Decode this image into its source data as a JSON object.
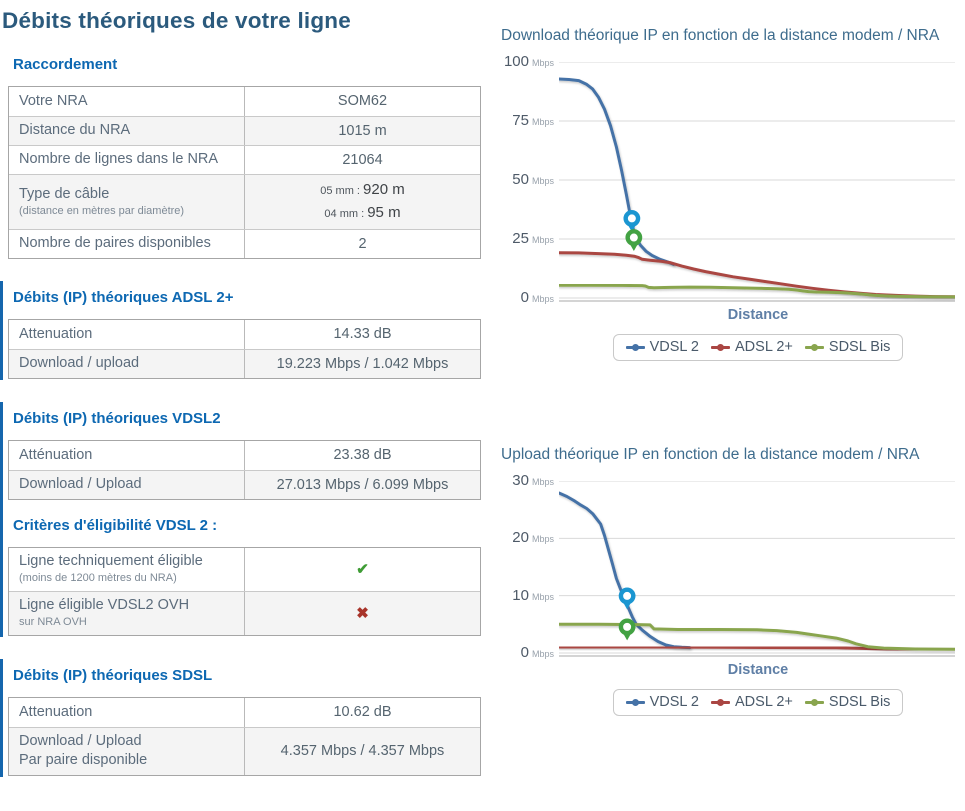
{
  "page_title": "Débits théoriques de votre ligne",
  "colors": {
    "accent_blue": "#0d68b2",
    "title_blue": "#2b5a7d",
    "bar_blue": "#1566ad",
    "vdsl2_line": "#4572a7",
    "adsl_line": "#aa4643",
    "sdsl_line": "#89a54e",
    "pin_blue": "#1b96d1",
    "pin_green": "#43a243",
    "check_green": "#3f9c35",
    "cross_red": "#a8342a"
  },
  "sections": [
    {
      "id": "raccordement",
      "bar": false,
      "blocks": [
        {
          "type": "heading",
          "text": "Raccordement"
        },
        {
          "type": "table",
          "rows": [
            {
              "label": "Votre NRA",
              "value": "SOM62"
            },
            {
              "label": "Distance du NRA",
              "value": "1015 m"
            },
            {
              "label": "Nombre de lignes dans le NRA",
              "value": "21064"
            },
            {
              "label": "Type de câble",
              "sublabel": "(distance en mètres par diamètre)",
              "value_lines": [
                {
                  "small": "05 mm : ",
                  "big": "920 m"
                },
                {
                  "small": "04 mm : ",
                  "big": "95 m"
                }
              ]
            },
            {
              "label": "Nombre de paires disponibles",
              "value": "2"
            }
          ]
        }
      ]
    },
    {
      "id": "adsl",
      "bar": true,
      "blocks": [
        {
          "type": "heading",
          "text": "Débits (IP) théoriques ADSL 2+"
        },
        {
          "type": "table",
          "rows": [
            {
              "label": "Attenuation",
              "value": "14.33 dB"
            },
            {
              "label": "Download / upload",
              "value": "19.223 Mbps / 1.042 Mbps"
            }
          ]
        }
      ]
    },
    {
      "id": "vdsl2",
      "bar": true,
      "blocks": [
        {
          "type": "heading",
          "text": "Débits (IP) théoriques VDSL2"
        },
        {
          "type": "table",
          "rows": [
            {
              "label": "Atténuation",
              "value": "23.38 dB"
            },
            {
              "label": "Download / Upload",
              "value": "27.013 Mbps / 6.099 Mbps"
            }
          ]
        },
        {
          "type": "heading",
          "text": "Critères d'éligibilité VDSL 2 :",
          "sub": true
        },
        {
          "type": "table",
          "rows": [
            {
              "label": "Ligne techniquement éligible",
              "sublabel": "(moins de 1200 mètres du NRA)",
              "icon": "check"
            },
            {
              "label": "Ligne éligible VDSL2 OVH",
              "sublabel2": "sur NRA OVH",
              "icon": "cross"
            }
          ]
        }
      ]
    },
    {
      "id": "sdsl",
      "bar": true,
      "blocks": [
        {
          "type": "heading",
          "text": "Débits (IP) théoriques SDSL"
        },
        {
          "type": "table",
          "rows": [
            {
              "label": "Attenuation",
              "value": "10.62 dB"
            },
            {
              "label": "Download / Upload",
              "label2": "Par paire disponible",
              "value": "4.357 Mbps / 4.357 Mbps"
            }
          ]
        }
      ]
    }
  ],
  "chart_data": [
    {
      "type": "line",
      "title": "Download théorique IP en fonction de la distance modem / NRA",
      "xlabel": "Distance",
      "ylabel": "Mbps",
      "unit": "Mbps",
      "ylim": [
        0,
        100
      ],
      "yticks": [
        100,
        75,
        50,
        25,
        0
      ],
      "grid": true,
      "legend_position": "bottom",
      "legend": [
        "VDSL 2",
        "ADSL 2+",
        "SDSL Bis"
      ],
      "x_axis_note": "x axis unlabeled, values are % of plotted distance range",
      "series": [
        {
          "name": "VDSL 2",
          "color": "#4572a7",
          "points": [
            [
              0,
              92.8
            ],
            [
              2.5,
              92.6
            ],
            [
              5,
              92.1
            ],
            [
              7,
              90.5
            ],
            [
              8.5,
              88.5
            ],
            [
              10,
              85
            ],
            [
              11.5,
              80
            ],
            [
              13,
              73
            ],
            [
              14.5,
              64
            ],
            [
              15.8,
              54
            ],
            [
              17,
              44
            ],
            [
              18,
              35
            ],
            [
              18.8,
              29
            ],
            [
              19.6,
              25
            ],
            [
              20.6,
              22.3
            ],
            [
              22,
              19.8
            ],
            [
              23.5,
              18
            ],
            [
              25.5,
              16.4
            ],
            [
              27.5,
              15.2
            ],
            [
              29,
              14.3
            ]
          ]
        },
        {
          "name": "ADSL 2+",
          "color": "#aa4643",
          "points": [
            [
              0,
              19.2
            ],
            [
              5,
              19.1
            ],
            [
              10,
              18.8
            ],
            [
              14,
              18.5
            ],
            [
              17,
              18.1
            ],
            [
              19,
              17.7
            ],
            [
              20,
              17.2
            ],
            [
              21,
              16.4
            ],
            [
              23,
              16
            ],
            [
              26,
              15.5
            ],
            [
              28,
              15
            ],
            [
              29.5,
              14.3
            ],
            [
              31,
              13.5
            ],
            [
              34,
              12.3
            ],
            [
              37,
              11.2
            ],
            [
              40,
              10.2
            ],
            [
              44,
              9
            ],
            [
              48,
              8
            ],
            [
              52,
              7
            ],
            [
              56,
              6
            ],
            [
              60,
              5
            ],
            [
              64,
              4.1
            ],
            [
              68,
              3.3
            ],
            [
              72,
              2.6
            ],
            [
              76,
              2
            ],
            [
              80,
              1.5
            ],
            [
              85,
              1.1
            ],
            [
              90,
              0.8
            ],
            [
              95,
              0.6
            ],
            [
              100,
              0.5
            ]
          ]
        },
        {
          "name": "SDSL Bis",
          "color": "#89a54e",
          "points": [
            [
              0,
              5.4
            ],
            [
              8,
              5.4
            ],
            [
              16,
              5.35
            ],
            [
              21,
              5.25
            ],
            [
              21.8,
              5.1
            ],
            [
              22.6,
              4.5
            ],
            [
              24,
              4.35
            ],
            [
              28,
              4.5
            ],
            [
              33,
              4.6
            ],
            [
              38,
              4.55
            ],
            [
              44,
              4.35
            ],
            [
              50,
              4.15
            ],
            [
              55,
              3.95
            ],
            [
              58,
              3.7
            ],
            [
              60,
              3.4
            ],
            [
              61.5,
              3.0
            ],
            [
              63,
              2.7
            ],
            [
              65,
              2.55
            ],
            [
              68,
              2.45
            ],
            [
              71,
              2.3
            ],
            [
              73,
              2.1
            ],
            [
              75,
              1.85
            ],
            [
              77,
              1.55
            ],
            [
              79,
              1.25
            ],
            [
              81,
              1.0
            ],
            [
              84,
              0.8
            ],
            [
              88,
              0.65
            ],
            [
              93,
              0.55
            ],
            [
              100,
              0.45
            ]
          ]
        }
      ],
      "markers": [
        {
          "name": "vdsl2-position-pin",
          "color": "#1b96d1",
          "x": 18.4,
          "value": 28.0
        },
        {
          "name": "adsl-position-pin",
          "color": "#43a243",
          "x": 18.9,
          "value": 19.9
        }
      ]
    },
    {
      "type": "line",
      "title": "Upload théorique IP en fonction de la distance modem / NRA",
      "xlabel": "Distance",
      "ylabel": "Mbps",
      "unit": "Mbps",
      "ylim": [
        0,
        30
      ],
      "yticks": [
        30,
        20,
        10,
        0
      ],
      "grid": true,
      "legend_position": "bottom",
      "legend": [
        "VDSL 2",
        "ADSL 2+",
        "SDSL Bis"
      ],
      "x_axis_note": "x axis unlabeled, values are % of plotted distance range",
      "series": [
        {
          "name": "VDSL 2",
          "color": "#4572a7",
          "points": [
            [
              0,
              27.9
            ],
            [
              2,
              27.3
            ],
            [
              4,
              26.5
            ],
            [
              5.5,
              25.8
            ],
            [
              7,
              25.2
            ],
            [
              8.5,
              24.3
            ],
            [
              9.5,
              23.4
            ],
            [
              10.5,
              22.5
            ],
            [
              11.5,
              20.5
            ],
            [
              12.5,
              18
            ],
            [
              13.5,
              15.5
            ],
            [
              14.5,
              13
            ],
            [
              15.5,
              11.2
            ],
            [
              16.5,
              9.6
            ],
            [
              17.5,
              7.9
            ],
            [
              18.5,
              6.3
            ],
            [
              19.5,
              5.0
            ],
            [
              21,
              4.0
            ],
            [
              23,
              2.9
            ],
            [
              25,
              2.0
            ],
            [
              27,
              1.4
            ],
            [
              29,
              1.1
            ],
            [
              31,
              1.0
            ],
            [
              33,
              0.95
            ]
          ]
        },
        {
          "name": "ADSL 2+",
          "color": "#aa4643",
          "points": [
            [
              0,
              1.05
            ],
            [
              20,
              1.05
            ],
            [
              40,
              1.0
            ],
            [
              60,
              0.95
            ],
            [
              70,
              0.9
            ],
            [
              80,
              0.75
            ],
            [
              90,
              0.6
            ],
            [
              100,
              0.55
            ]
          ]
        },
        {
          "name": "SDSL Bis",
          "color": "#89a54e",
          "points": [
            [
              0,
              5.0
            ],
            [
              10,
              5.0
            ],
            [
              20,
              4.95
            ],
            [
              23,
              4.9
            ],
            [
              24,
              4.2
            ],
            [
              30,
              4.1
            ],
            [
              40,
              4.1
            ],
            [
              50,
              4.05
            ],
            [
              55,
              3.9
            ],
            [
              60,
              3.6
            ],
            [
              63,
              3.3
            ],
            [
              66,
              3.0
            ],
            [
              70,
              2.6
            ],
            [
              73,
              2.1
            ],
            [
              75,
              1.6
            ],
            [
              78,
              1.1
            ],
            [
              82,
              0.85
            ],
            [
              90,
              0.7
            ],
            [
              100,
              0.65
            ]
          ]
        }
      ],
      "markers": [
        {
          "name": "vdsl2-position-pin",
          "color": "#1b96d1",
          "x": 17.2,
          "value": 7.6
        },
        {
          "name": "adsl-position-pin",
          "color": "#43a243",
          "x": 17.2,
          "value": 2.2
        }
      ]
    }
  ]
}
